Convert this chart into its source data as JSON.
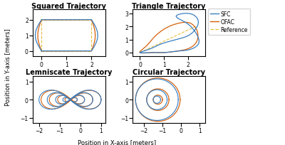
{
  "titles": [
    "Squared Trajectory",
    "Triangle Trajectory",
    "Lemniscate Trajectory",
    "Circular Trajectory"
  ],
  "colors": {
    "SFC": "#3A7FC1",
    "OFAC": "#D4600A",
    "Reference": "#E8C040"
  },
  "xlabel": "Position in X-axis [meters]",
  "ylabel": "Position in Y-axis [meters]",
  "title_fontsize": 7,
  "label_fontsize": 6,
  "tick_fontsize": 5.5,
  "legend_fontsize": 5.5
}
